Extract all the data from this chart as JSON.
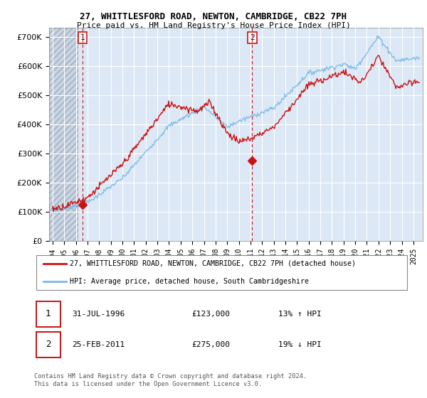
{
  "title": "27, WHITTLESFORD ROAD, NEWTON, CAMBRIDGE, CB22 7PH",
  "subtitle": "Price paid vs. HM Land Registry's House Price Index (HPI)",
  "ylabel_ticks": [
    "£0",
    "£100K",
    "£200K",
    "£300K",
    "£400K",
    "£500K",
    "£600K",
    "£700K"
  ],
  "ytick_vals": [
    0,
    100000,
    200000,
    300000,
    400000,
    500000,
    600000,
    700000
  ],
  "ylim": [
    0,
    730000
  ],
  "xlim_start": 1993.7,
  "xlim_end": 2025.8,
  "xtick_years": [
    1994,
    1995,
    1996,
    1997,
    1998,
    1999,
    2000,
    2001,
    2002,
    2003,
    2004,
    2005,
    2006,
    2007,
    2008,
    2009,
    2010,
    2011,
    2012,
    2013,
    2014,
    2015,
    2016,
    2017,
    2018,
    2019,
    2020,
    2021,
    2022,
    2023,
    2024,
    2025
  ],
  "hpi_color": "#7ab8e8",
  "price_color": "#cc1111",
  "vline_color": "#cc1111",
  "chart_bg": "#dce8f5",
  "hatch_bg": "#c5d5e8",
  "legend_label_price": "27, WHITTLESFORD ROAD, NEWTON, CAMBRIDGE, CB22 7PH (detached house)",
  "legend_label_hpi": "HPI: Average price, detached house, South Cambridgeshire",
  "sale1_year": 1996.58,
  "sale1_price": 123000,
  "sale2_year": 2011.15,
  "sale2_price": 275000,
  "sale1_date": "31-JUL-1996",
  "sale1_amount": "£123,000",
  "sale1_hpi_pct": "13% ↑ HPI",
  "sale2_date": "25-FEB-2011",
  "sale2_amount": "£275,000",
  "sale2_hpi_pct": "19% ↓ HPI",
  "footer": "Contains HM Land Registry data © Crown copyright and database right 2024.\nThis data is licensed under the Open Government Licence v3.0.",
  "bg_color": "#ffffff"
}
